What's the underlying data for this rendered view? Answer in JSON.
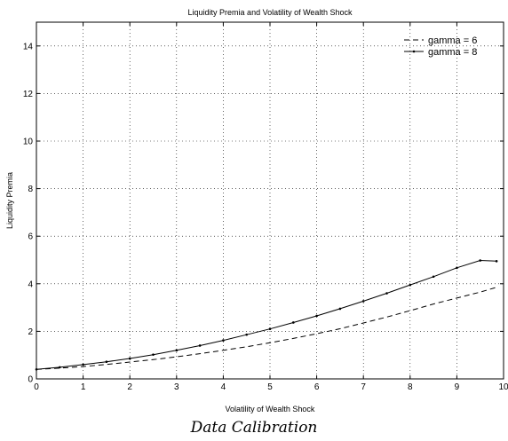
{
  "chart_data": {
    "type": "line",
    "title": "Liquidity Premia and Volatility of Wealth Shock",
    "xlabel": "Volatility of Wealth Shock",
    "ylabel": "Liquidity Premia",
    "xlim": [
      0,
      10
    ],
    "ylim": [
      0,
      15
    ],
    "xticks": [
      0,
      1,
      2,
      3,
      4,
      5,
      6,
      7,
      8,
      9,
      10
    ],
    "yticks": [
      0,
      2,
      4,
      6,
      8,
      10,
      12,
      14
    ],
    "grid": true,
    "legend_position": "top-right",
    "series": [
      {
        "name": "gamma = 6",
        "style": "dashed",
        "color": "#000000",
        "x": [
          0,
          0.5,
          1,
          1.5,
          2,
          2.5,
          3,
          3.5,
          4,
          4.5,
          5,
          5.5,
          6,
          6.5,
          7,
          7.5,
          8,
          8.5,
          9,
          9.5,
          9.85
        ],
        "y": [
          0.4,
          0.45,
          0.52,
          0.61,
          0.71,
          0.81,
          0.93,
          1.06,
          1.2,
          1.35,
          1.52,
          1.7,
          1.9,
          2.11,
          2.35,
          2.6,
          2.87,
          3.15,
          3.4,
          3.65,
          3.85
        ]
      },
      {
        "name": "gamma = 8",
        "style": "solid-dots",
        "color": "#000000",
        "x": [
          0,
          0.5,
          1,
          1.5,
          2,
          2.5,
          3,
          3.5,
          4,
          4.5,
          5,
          5.5,
          6,
          6.5,
          7,
          7.5,
          8,
          8.5,
          9,
          9.5,
          9.85
        ],
        "y": [
          0.4,
          0.49,
          0.6,
          0.72,
          0.86,
          1.02,
          1.2,
          1.4,
          1.62,
          1.86,
          2.1,
          2.37,
          2.65,
          2.95,
          3.27,
          3.6,
          3.95,
          4.3,
          4.67,
          4.98,
          4.95
        ]
      }
    ]
  },
  "caption": "Data Calibration"
}
